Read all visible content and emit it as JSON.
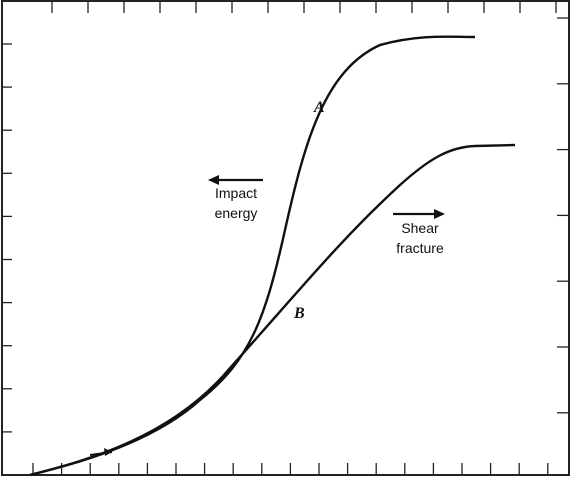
{
  "labels": {
    "curve_a": "A",
    "curve_b": "B",
    "impact_energy": [
      "Impact",
      "energy"
    ],
    "shear_fracture": [
      "Shear",
      "fracture"
    ]
  }
}
